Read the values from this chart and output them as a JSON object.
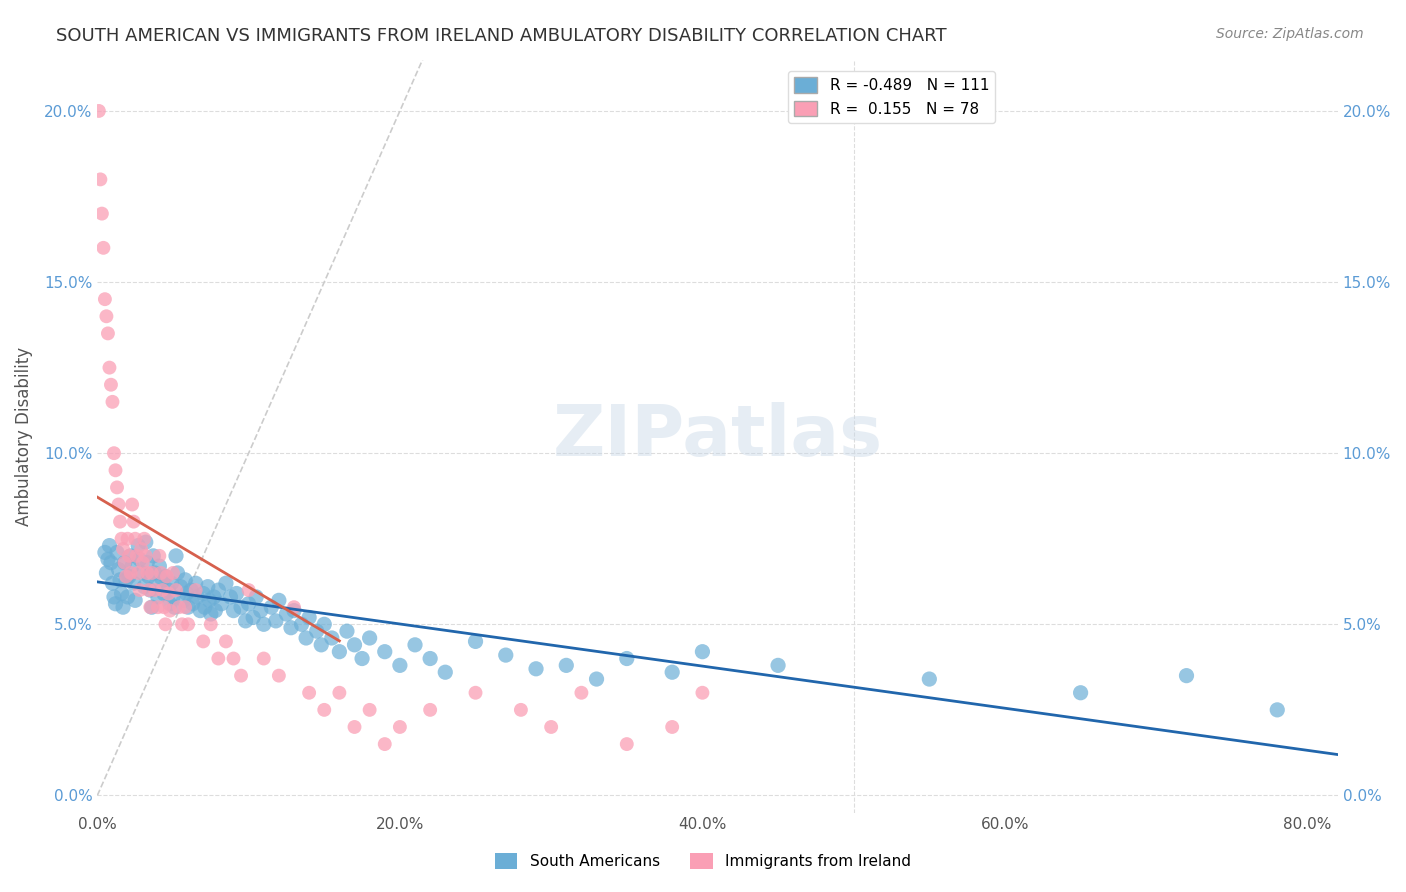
{
  "title": "SOUTH AMERICAN VS IMMIGRANTS FROM IRELAND AMBULATORY DISABILITY CORRELATION CHART",
  "source": "Source: ZipAtlas.com",
  "ylabel": "Ambulatory Disability",
  "xlabel_ticks": [
    "0.0%",
    "20.0%",
    "40.0%",
    "60.0%",
    "80.0%"
  ],
  "xlabel_vals": [
    0.0,
    0.2,
    0.4,
    0.6,
    0.8
  ],
  "ylabel_ticks": [
    "0.0%",
    "5.0%",
    "10.0%",
    "15.0%",
    "20.0%"
  ],
  "ylabel_vals": [
    0.0,
    0.05,
    0.1,
    0.15,
    0.2
  ],
  "xlim": [
    0.0,
    0.82
  ],
  "ylim": [
    -0.005,
    0.215
  ],
  "blue_R": -0.489,
  "blue_N": 111,
  "pink_R": 0.155,
  "pink_N": 78,
  "blue_color": "#6baed6",
  "pink_color": "#fa9fb5",
  "blue_line_color": "#2166ac",
  "pink_line_color": "#d6604d",
  "diag_line_color": "#cccccc",
  "watermark": "ZIPatlas",
  "legend_blue_label": "South Americans",
  "legend_pink_label": "Immigrants from Ireland",
  "blue_scatter_x": [
    0.005,
    0.006,
    0.007,
    0.008,
    0.009,
    0.01,
    0.011,
    0.012,
    0.013,
    0.014,
    0.015,
    0.016,
    0.017,
    0.018,
    0.019,
    0.02,
    0.021,
    0.022,
    0.023,
    0.024,
    0.025,
    0.027,
    0.028,
    0.03,
    0.031,
    0.032,
    0.033,
    0.034,
    0.035,
    0.036,
    0.037,
    0.038,
    0.039,
    0.04,
    0.041,
    0.043,
    0.044,
    0.045,
    0.047,
    0.048,
    0.049,
    0.05,
    0.051,
    0.052,
    0.053,
    0.055,
    0.057,
    0.058,
    0.059,
    0.06,
    0.062,
    0.063,
    0.065,
    0.066,
    0.068,
    0.07,
    0.071,
    0.073,
    0.074,
    0.075,
    0.077,
    0.078,
    0.08,
    0.082,
    0.085,
    0.088,
    0.09,
    0.092,
    0.095,
    0.098,
    0.1,
    0.103,
    0.105,
    0.108,
    0.11,
    0.115,
    0.118,
    0.12,
    0.125,
    0.128,
    0.13,
    0.135,
    0.138,
    0.14,
    0.145,
    0.148,
    0.15,
    0.155,
    0.16,
    0.165,
    0.17,
    0.175,
    0.18,
    0.19,
    0.2,
    0.21,
    0.22,
    0.23,
    0.25,
    0.27,
    0.29,
    0.31,
    0.33,
    0.35,
    0.38,
    0.4,
    0.45,
    0.55,
    0.65,
    0.72,
    0.78
  ],
  "blue_scatter_y": [
    0.071,
    0.065,
    0.069,
    0.073,
    0.068,
    0.062,
    0.058,
    0.056,
    0.071,
    0.066,
    0.063,
    0.059,
    0.055,
    0.068,
    0.063,
    0.058,
    0.064,
    0.07,
    0.067,
    0.062,
    0.057,
    0.073,
    0.069,
    0.065,
    0.061,
    0.074,
    0.068,
    0.064,
    0.06,
    0.055,
    0.07,
    0.065,
    0.062,
    0.058,
    0.067,
    0.063,
    0.059,
    0.064,
    0.06,
    0.056,
    0.062,
    0.058,
    0.055,
    0.07,
    0.065,
    0.061,
    0.057,
    0.063,
    0.059,
    0.055,
    0.06,
    0.056,
    0.062,
    0.058,
    0.054,
    0.059,
    0.055,
    0.061,
    0.057,
    0.053,
    0.058,
    0.054,
    0.06,
    0.056,
    0.062,
    0.058,
    0.054,
    0.059,
    0.055,
    0.051,
    0.056,
    0.052,
    0.058,
    0.054,
    0.05,
    0.055,
    0.051,
    0.057,
    0.053,
    0.049,
    0.054,
    0.05,
    0.046,
    0.052,
    0.048,
    0.044,
    0.05,
    0.046,
    0.042,
    0.048,
    0.044,
    0.04,
    0.046,
    0.042,
    0.038,
    0.044,
    0.04,
    0.036,
    0.045,
    0.041,
    0.037,
    0.038,
    0.034,
    0.04,
    0.036,
    0.042,
    0.038,
    0.034,
    0.03,
    0.035,
    0.025
  ],
  "pink_scatter_x": [
    0.001,
    0.002,
    0.003,
    0.004,
    0.005,
    0.006,
    0.007,
    0.008,
    0.009,
    0.01,
    0.011,
    0.012,
    0.013,
    0.014,
    0.015,
    0.016,
    0.017,
    0.018,
    0.019,
    0.02,
    0.021,
    0.022,
    0.023,
    0.024,
    0.025,
    0.026,
    0.027,
    0.028,
    0.029,
    0.03,
    0.031,
    0.032,
    0.033,
    0.034,
    0.035,
    0.036,
    0.038,
    0.04,
    0.041,
    0.042,
    0.043,
    0.044,
    0.045,
    0.046,
    0.047,
    0.048,
    0.05,
    0.052,
    0.054,
    0.056,
    0.058,
    0.06,
    0.065,
    0.07,
    0.075,
    0.08,
    0.085,
    0.09,
    0.095,
    0.1,
    0.11,
    0.12,
    0.13,
    0.14,
    0.15,
    0.16,
    0.17,
    0.18,
    0.19,
    0.2,
    0.22,
    0.25,
    0.28,
    0.3,
    0.32,
    0.35,
    0.38,
    0.4
  ],
  "pink_scatter_y": [
    0.2,
    0.18,
    0.17,
    0.16,
    0.145,
    0.14,
    0.135,
    0.125,
    0.12,
    0.115,
    0.1,
    0.095,
    0.09,
    0.085,
    0.08,
    0.075,
    0.072,
    0.068,
    0.064,
    0.075,
    0.07,
    0.065,
    0.085,
    0.08,
    0.075,
    0.07,
    0.065,
    0.06,
    0.072,
    0.068,
    0.075,
    0.07,
    0.065,
    0.06,
    0.055,
    0.065,
    0.06,
    0.055,
    0.07,
    0.065,
    0.06,
    0.055,
    0.05,
    0.064,
    0.059,
    0.054,
    0.065,
    0.06,
    0.055,
    0.05,
    0.055,
    0.05,
    0.06,
    0.045,
    0.05,
    0.04,
    0.045,
    0.04,
    0.035,
    0.06,
    0.04,
    0.035,
    0.055,
    0.03,
    0.025,
    0.03,
    0.02,
    0.025,
    0.015,
    0.02,
    0.025,
    0.03,
    0.025,
    0.02,
    0.03,
    0.015,
    0.02,
    0.03
  ]
}
